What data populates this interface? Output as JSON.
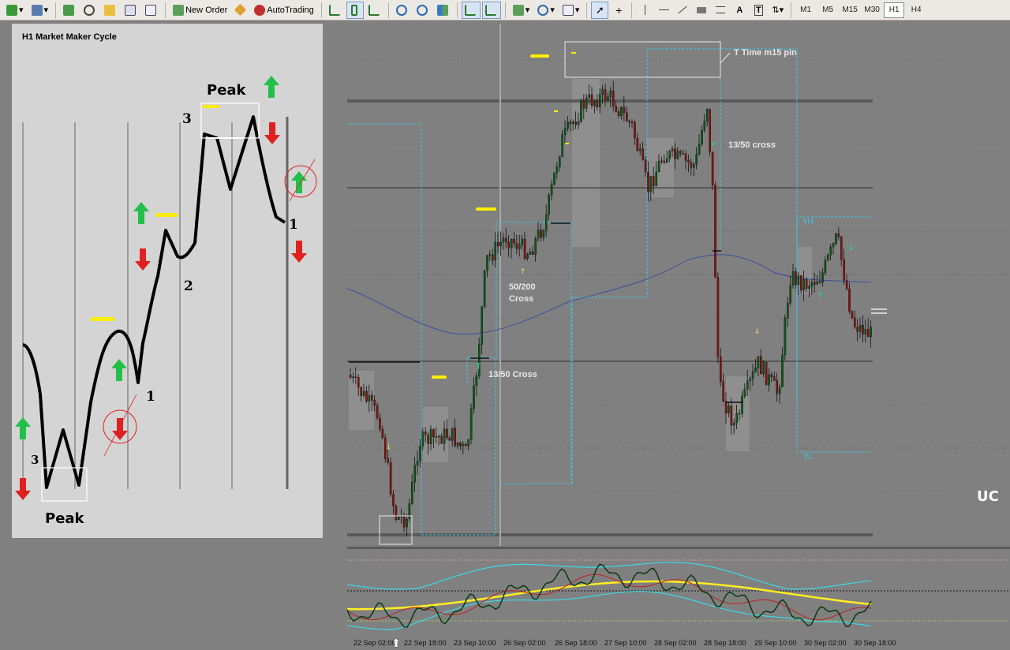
{
  "toolbar": {
    "new_order_label": "New Order",
    "autotrading_label": "AutoTrading",
    "timeframes": [
      "M1",
      "M5",
      "M15",
      "M30",
      "H1",
      "H4"
    ],
    "active_timeframe": "H1"
  },
  "cycle_panel": {
    "title": "H1 Market Maker Cycle",
    "peak_bottom_label": "Peak",
    "peak_top_label": "Peak",
    "label_3_left": "3",
    "label_1_mid": "1",
    "label_2": "2",
    "label_3_top": "3",
    "label_1_right": "1"
  },
  "annotations": {
    "t_time": "T Time m15 pin",
    "cross_1350_upper": "13/50 cross",
    "cross_50200_line1": "50/200",
    "cross_50200_line2": "Cross",
    "cross_1350_lower": "13/50 Cross",
    "yh": "YH",
    "yl": "YL"
  },
  "watermark": "UC",
  "time_axis": {
    "labels": [
      "22 Sep 02:00",
      "22 Sep 18:00",
      "23 Sep 10:00",
      "26 Sep 02:00",
      "26 Sep 18:00",
      "27 Sep 10:00",
      "28 Sep 02:00",
      "28 Sep 18:00",
      "29 Sep 10:00",
      "30 Sep 02:00",
      "30 Sep 18:00"
    ]
  },
  "colors": {
    "bull": "#0a5a1a",
    "bear": "#8b1010",
    "ma_blue": "#3a4f9c",
    "range_line": "#3cc8e6",
    "yellow": "#ffee00"
  }
}
